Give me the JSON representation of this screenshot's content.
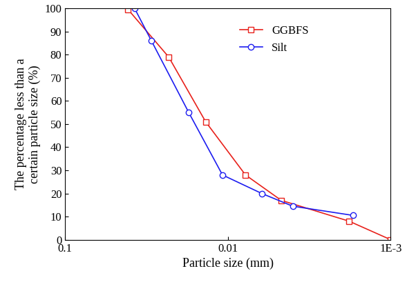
{
  "chart_data": {
    "type": "line",
    "x_label": "Particle size (mm)",
    "y_label": "The percentage less than a\ncertain particle size (%)",
    "log": "x",
    "grid": false,
    "legend": "upper right",
    "xlim": [
      0.1,
      0.001
    ],
    "xticks": [
      0.1,
      0.01,
      {
        "value": 0.001,
        "label": "1E-3"
      }
    ],
    "ylim": [
      0,
      100
    ],
    "yticks": [
      0,
      10,
      20,
      30,
      40,
      50,
      60,
      70,
      80,
      90,
      100
    ],
    "series": [
      {
        "name": "GGBFS",
        "color": "#e8211b",
        "marker": "square",
        "line_style": "solid",
        "x": [
          0.041,
          0.0231,
          0.0137,
          0.0078,
          0.0047,
          0.0018,
          0.001
        ],
        "values": [
          99.5,
          79,
          51,
          28,
          17,
          8,
          0
        ]
      },
      {
        "name": "Silt",
        "color": "#1c1cf0",
        "marker": "circle",
        "line_style": "solid",
        "x": [
          0.0374,
          0.0295,
          0.0174,
          0.0108,
          0.0062,
          0.004,
          0.0017
        ],
        "values": [
          100,
          86,
          55,
          28,
          20,
          14.5,
          10.5
        ]
      }
    ]
  }
}
